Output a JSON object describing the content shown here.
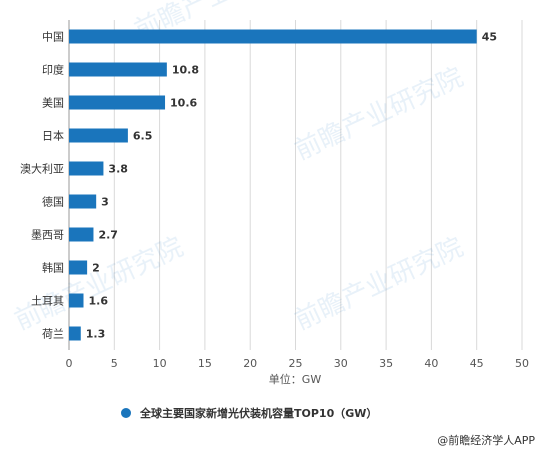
{
  "chart_data": {
    "type": "bar",
    "orientation": "horizontal",
    "categories": [
      "中国",
      "印度",
      "美国",
      "日本",
      "澳大利亚",
      "德国",
      "墨西哥",
      "韩国",
      "土耳其",
      "荷兰"
    ],
    "values": [
      45,
      10.8,
      10.6,
      6.5,
      3.8,
      3,
      2.7,
      2,
      1.6,
      1.3
    ],
    "value_labels": [
      "45",
      "10.8",
      "10.6",
      "6.5",
      "3.8",
      "3",
      "2.7",
      "2",
      "1.6",
      "1.3"
    ],
    "xlim": [
      0,
      50
    ],
    "xticks": [
      "0",
      "5",
      "10",
      "15",
      "20",
      "25",
      "30",
      "35",
      "40",
      "45",
      "50"
    ],
    "xlabel": "单位：GW",
    "legend": {
      "position": "bottom",
      "label": "全球主要国家新增光伏装机容量TOP10（GW）"
    },
    "grid": "vertical",
    "bar_color": "#1a75bc"
  },
  "credit": "@前瞻经济学人APP"
}
